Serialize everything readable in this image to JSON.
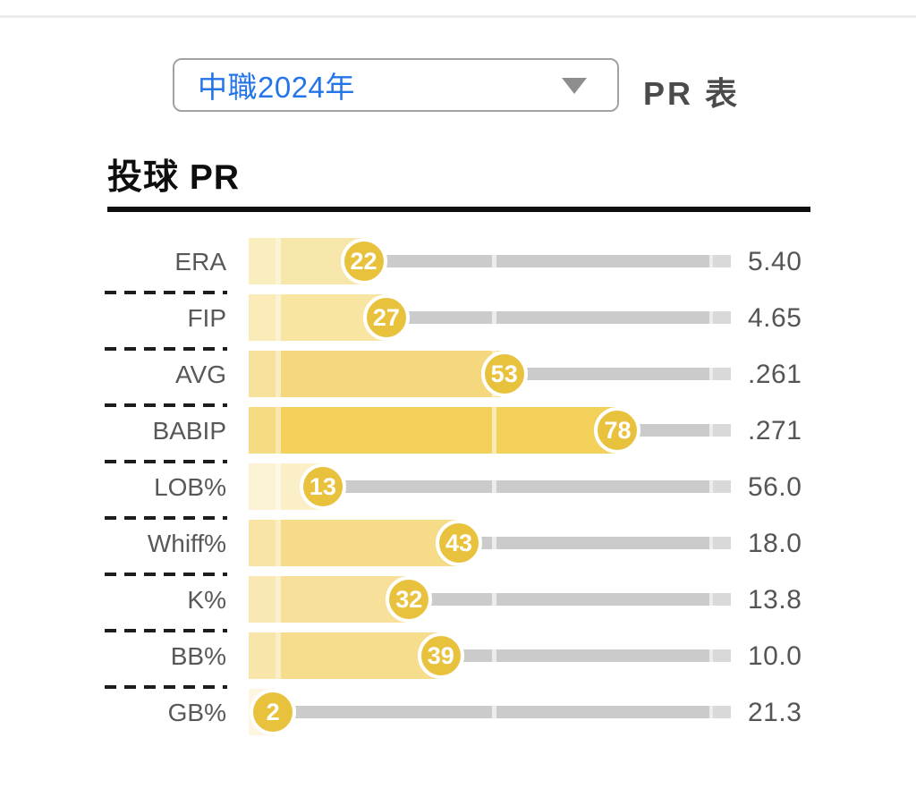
{
  "header": {
    "season_selected": "中職2024年",
    "pr_table_label": "PR 表",
    "season_text_color": "#2575e8"
  },
  "main": {
    "title": "投球 PR"
  },
  "chart_data": {
    "type": "bar",
    "orientation": "horizontal",
    "title": "投球 PR",
    "pr_scale": [
      0,
      100
    ],
    "legend": "none",
    "rows": [
      {
        "label": "ERA",
        "pr": 22,
        "value": "5.40",
        "bar_color": "#f8e7ab"
      },
      {
        "label": "FIP",
        "pr": 27,
        "value": "4.65",
        "bar_color": "#f8e5a2"
      },
      {
        "label": "AVG",
        "pr": 53,
        "value": ".261",
        "bar_color": "#f5d87d"
      },
      {
        "label": "BABIP",
        "pr": 78,
        "value": ".271",
        "bar_color": "#f2d05a"
      },
      {
        "label": "LOB%",
        "pr": 13,
        "value": "56.0",
        "bar_color": "#faefc6"
      },
      {
        "label": "Whiff%",
        "pr": 43,
        "value": "18.0",
        "bar_color": "#f6dc88"
      },
      {
        "label": "K%",
        "pr": 32,
        "value": "13.8",
        "bar_color": "#f7e09a"
      },
      {
        "label": "BB%",
        "pr": 39,
        "value": "10.0",
        "bar_color": "#f6dd8e"
      },
      {
        "label": "GB%",
        "pr": 2,
        "value": "21.3",
        "bar_color": "#fcf3d8"
      }
    ],
    "badge_color": "#e9c23d",
    "track_color": "#cbcbcb",
    "track_end_color": "#d9d9d9"
  }
}
